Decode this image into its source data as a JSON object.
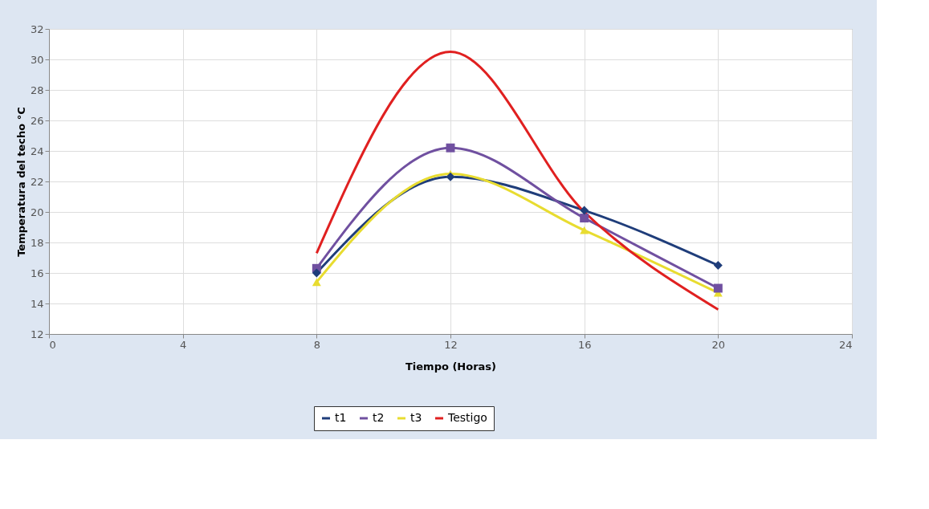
{
  "chart_data": {
    "type": "line",
    "xlabel": "Tiempo (Horas)",
    "ylabel": "Temperatura del techo °C",
    "x": [
      8,
      12,
      16,
      20
    ],
    "series": [
      {
        "name": "t1",
        "color": "#1f3d7a",
        "marker": "diamond",
        "values": [
          16.0,
          22.3,
          20.1,
          16.5
        ]
      },
      {
        "name": "t2",
        "color": "#7050a0",
        "marker": "square",
        "values": [
          16.3,
          24.2,
          19.6,
          15.0
        ]
      },
      {
        "name": "t3",
        "color": "#e8dc30",
        "marker": "triangle",
        "values": [
          15.4,
          22.5,
          18.8,
          14.7
        ]
      },
      {
        "name": "Testigo",
        "color": "#e02020",
        "marker": "none",
        "values": [
          17.3,
          30.5,
          20.0,
          13.6
        ]
      }
    ],
    "xlim": [
      0,
      24
    ],
    "xticks": [
      0,
      4,
      8,
      12,
      16,
      20,
      24
    ],
    "ylim": [
      12,
      32
    ],
    "yticks": [
      12,
      14,
      16,
      18,
      20,
      22,
      24,
      26,
      28,
      30,
      32
    ],
    "grid": true,
    "legend": "bottom"
  }
}
